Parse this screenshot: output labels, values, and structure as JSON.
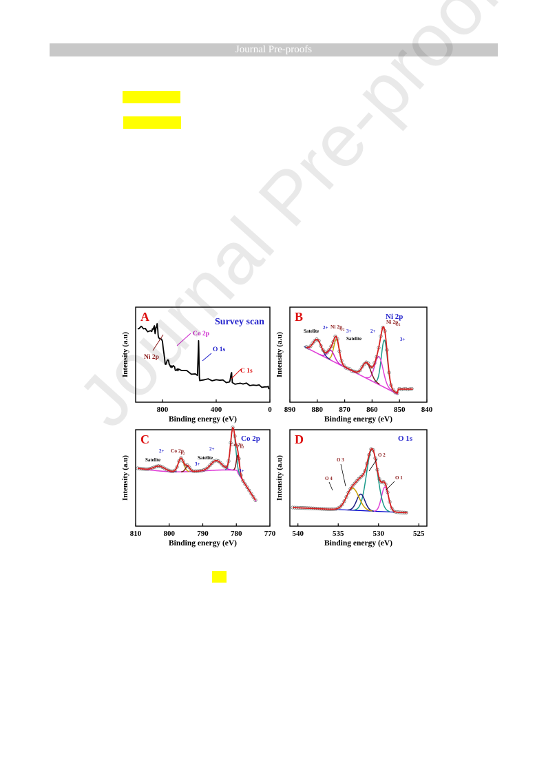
{
  "header": {
    "title": "Journal Pre-proofs"
  },
  "watermark": {
    "text": "Journal Pre-proofs"
  },
  "colors": {
    "highlight": "#ffff00",
    "header_bg": "#c8c8c8",
    "red_label": "#dd1111",
    "blue_title": "#2222cc"
  },
  "figure": {
    "panels": [
      {
        "letter": "A",
        "title": "Survey scan",
        "xlabel": "Binding energy (eV)",
        "ylabel": "Intensity (a.u)",
        "xticks": [
          "800",
          "400",
          "0"
        ],
        "annotations": [
          "Ni 2p",
          "Co 2p",
          "O 1s",
          "C 1s"
        ]
      },
      {
        "letter": "B",
        "title": "Ni 2p",
        "xlabel": "Binding energy (eV)",
        "ylabel": "Intensity (a.u)",
        "xticks": [
          "890",
          "880",
          "870",
          "860",
          "850",
          "840"
        ],
        "annotations": [
          "Satelite",
          "2+",
          "Ni 2p",
          "1/2",
          "3+",
          "Satelite",
          "2+",
          "Ni 2p",
          "3/2",
          "3+"
        ]
      },
      {
        "letter": "C",
        "title": "Co 2p",
        "xlabel": "Binding energy (eV)",
        "ylabel": "Intensity (a.u)",
        "xticks": [
          "810",
          "800",
          "790",
          "780",
          "770"
        ],
        "annotations": [
          "Satelite",
          "2+",
          "Co 2p",
          "1/2",
          "3+",
          "Satelite",
          "2+",
          "Co 2p",
          "3/2",
          "3+"
        ]
      },
      {
        "letter": "D",
        "title": "O 1s",
        "xlabel": "Binding energy (eV)",
        "ylabel": "Intensity (a.u)",
        "xticks": [
          "540",
          "535",
          "530",
          "525"
        ],
        "annotations": [
          "O 4",
          "O 3",
          "O 2",
          "O 1"
        ]
      }
    ]
  },
  "chart_data": [
    {
      "type": "line",
      "title": "Survey scan",
      "panel": "A",
      "xlabel": "Binding energy (eV)",
      "ylabel": "Intensity (a.u)",
      "xlim": [
        1000,
        0
      ],
      "x_reversed": true,
      "series": [
        {
          "x": [
            985,
            950,
            920,
            880,
            860,
            855,
            840,
            830,
            800,
            780,
            760,
            740,
            720,
            700,
            680,
            600,
            540,
            531,
            525,
            520,
            400,
            300,
            285,
            280,
            200,
            100,
            20,
            5
          ],
          "y": [
            92,
            94,
            90,
            88,
            96,
            85,
            99,
            80,
            74,
            42,
            48,
            38,
            40,
            33,
            35,
            30,
            26,
            75,
            22,
            19,
            20,
            17,
            30,
            16,
            14,
            12,
            10,
            8
          ]
        }
      ]
    },
    {
      "type": "line",
      "title": "Ni 2p",
      "panel": "B",
      "xlabel": "Binding energy (eV)",
      "ylabel": "Intensity (a.u)",
      "xlim": [
        890,
        840
      ],
      "x_reversed": true,
      "series": [
        {
          "name": "Ni 2p3/2 2+",
          "x": [
            855.5
          ],
          "y": [
            100
          ]
        },
        {
          "name": "Ni 2p3/2 3+",
          "x": [
            857.5
          ],
          "y": [
            55
          ]
        },
        {
          "name": "Satelite",
          "x": [
            862
          ],
          "y": [
            45
          ]
        },
        {
          "name": "Ni 2p1/2 2+",
          "x": [
            873
          ],
          "y": [
            60
          ]
        },
        {
          "name": "Ni 2p1/2 3+",
          "x": [
            875
          ],
          "y": [
            40
          ]
        },
        {
          "name": "Satelite",
          "x": [
            880
          ],
          "y": [
            55
          ]
        }
      ]
    },
    {
      "type": "line",
      "title": "Co 2p",
      "panel": "C",
      "xlabel": "Binding energy (eV)",
      "ylabel": "Intensity (a.u)",
      "xlim": [
        810,
        770
      ],
      "x_reversed": true,
      "series": [
        {
          "name": "Co 2p3/2 2+",
          "x": [
            781
          ],
          "y": [
            100
          ]
        },
        {
          "name": "Co 2p3/2 3+",
          "x": [
            779.5
          ],
          "y": [
            30
          ]
        },
        {
          "name": "Satelite",
          "x": [
            786
          ],
          "y": [
            25
          ]
        },
        {
          "name": "Co 2p1/2 2+",
          "x": [
            796.5
          ],
          "y": [
            50
          ]
        },
        {
          "name": "Co 2p1/2 3+",
          "x": [
            794.5
          ],
          "y": [
            18
          ]
        },
        {
          "name": "Satelite",
          "x": [
            803
          ],
          "y": [
            15
          ]
        }
      ]
    },
    {
      "type": "line",
      "title": "O 1s",
      "panel": "D",
      "xlabel": "Binding energy (eV)",
      "ylabel": "Intensity (a.u)",
      "xlim": [
        541,
        524
      ],
      "x_reversed": true,
      "series": [
        {
          "name": "O 1",
          "x": [
            529.2
          ],
          "y": [
            38
          ]
        },
        {
          "name": "O 2",
          "x": [
            530.8
          ],
          "y": [
            100
          ]
        },
        {
          "name": "O 3",
          "x": [
            532.2
          ],
          "y": [
            28
          ]
        },
        {
          "name": "O 4",
          "x": [
            533.2
          ],
          "y": [
            42
          ]
        }
      ]
    }
  ]
}
